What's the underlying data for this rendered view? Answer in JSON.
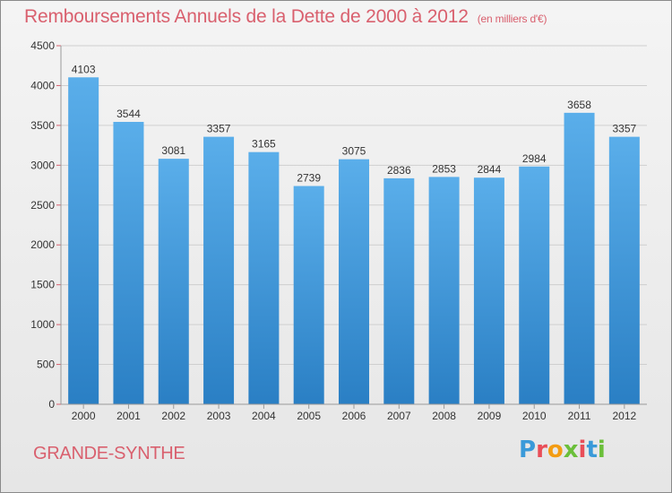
{
  "header": {
    "title": "Remboursements Annuels de la Dette de 2000 à 2012",
    "unit": "(en milliers d'€)"
  },
  "footer": {
    "city": "GRANDE-SYNTHE",
    "logo": "Proxiti"
  },
  "colors": {
    "title": "#d9606e",
    "bar_top": "#5aaeea",
    "bar_bottom": "#2a7fc4",
    "axis_mark": "#d9606e"
  },
  "chart_data": {
    "type": "bar",
    "title": "Remboursements Annuels de la Dette de 2000 à 2012",
    "xlabel": "",
    "ylabel": "",
    "categories": [
      "2000",
      "2001",
      "2002",
      "2003",
      "2004",
      "2005",
      "2006",
      "2007",
      "2008",
      "2009",
      "2010",
      "2011",
      "2012"
    ],
    "values": [
      4103,
      3544,
      3081,
      3357,
      3165,
      2739,
      3075,
      2836,
      2853,
      2844,
      2984,
      3658,
      3357
    ],
    "ylim": [
      0,
      4500
    ],
    "yticks": [
      0,
      500,
      1000,
      1500,
      2000,
      2500,
      3000,
      3500,
      4000,
      4500
    ],
    "grid": true
  }
}
